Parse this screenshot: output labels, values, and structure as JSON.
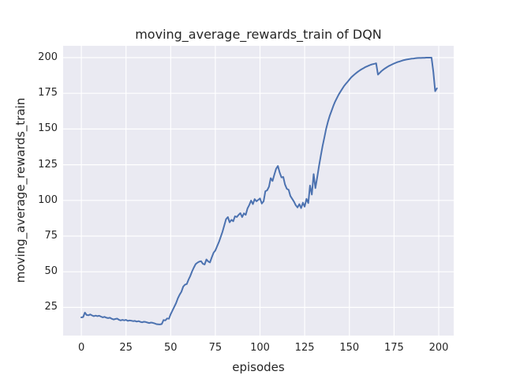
{
  "chart_data": {
    "type": "line",
    "title": "moving_average_rewards_train of DQN",
    "xlabel": "episodes",
    "ylabel": "moving_average_rewards_train",
    "xlim": [
      -10.2,
      208.4
    ],
    "ylim": [
      5.3,
      208.3
    ],
    "x_ticks": [
      0,
      25,
      50,
      75,
      100,
      125,
      150,
      175,
      200
    ],
    "y_ticks": [
      25,
      50,
      75,
      100,
      125,
      150,
      175,
      200
    ],
    "grid": true,
    "legend": false,
    "style": "seaborn-darkgrid",
    "colors": {
      "line": "#4c72b0",
      "axes_background": "#eaeaf2",
      "grid": "#ffffff",
      "text": "#262626",
      "figure_background": "#ffffff"
    },
    "series": [
      {
        "name": "moving_average_rewards_train",
        "points": [
          [
            0,
            18.0
          ],
          [
            1,
            18.3
          ],
          [
            2,
            21.4
          ],
          [
            3,
            19.7
          ],
          [
            4,
            19.5
          ],
          [
            5,
            20.1
          ],
          [
            6,
            19.4
          ],
          [
            7,
            18.9
          ],
          [
            8,
            19.3
          ],
          [
            9,
            18.9
          ],
          [
            10,
            19.2
          ],
          [
            11,
            18.6
          ],
          [
            12,
            18.1
          ],
          [
            13,
            18.4
          ],
          [
            14,
            17.8
          ],
          [
            15,
            17.5
          ],
          [
            16,
            17.8
          ],
          [
            17,
            17.1
          ],
          [
            18,
            16.6
          ],
          [
            19,
            16.9
          ],
          [
            20,
            17.2
          ],
          [
            21,
            16.4
          ],
          [
            22,
            15.9
          ],
          [
            23,
            16.3
          ],
          [
            24,
            16.0
          ],
          [
            25,
            16.3
          ],
          [
            26,
            15.6
          ],
          [
            27,
            15.9
          ],
          [
            28,
            15.7
          ],
          [
            29,
            15.4
          ],
          [
            30,
            15.6
          ],
          [
            31,
            15.1
          ],
          [
            32,
            15.4
          ],
          [
            33,
            14.9
          ],
          [
            34,
            14.6
          ],
          [
            35,
            15.0
          ],
          [
            36,
            14.8
          ],
          [
            37,
            14.4
          ],
          [
            38,
            14.1
          ],
          [
            39,
            14.4
          ],
          [
            40,
            14.2
          ],
          [
            41,
            13.8
          ],
          [
            42,
            13.3
          ],
          [
            43,
            13.2
          ],
          [
            44,
            13.1
          ],
          [
            45,
            13.4
          ],
          [
            46,
            16.2
          ],
          [
            47,
            15.9
          ],
          [
            48,
            17.3
          ],
          [
            49,
            17.1
          ],
          [
            50,
            20.3
          ],
          [
            51,
            22.9
          ],
          [
            52,
            25.4
          ],
          [
            53,
            28.0
          ],
          [
            54,
            31.4
          ],
          [
            55,
            33.9
          ],
          [
            56,
            36.0
          ],
          [
            57,
            39.6
          ],
          [
            58,
            40.9
          ],
          [
            59,
            41.4
          ],
          [
            60,
            44.6
          ],
          [
            61,
            47.1
          ],
          [
            62,
            50.4
          ],
          [
            63,
            53.1
          ],
          [
            64,
            55.4
          ],
          [
            65,
            56.4
          ],
          [
            66,
            57.1
          ],
          [
            67,
            57.4
          ],
          [
            68,
            55.6
          ],
          [
            69,
            55.1
          ],
          [
            70,
            58.6
          ],
          [
            71,
            57.2
          ],
          [
            72,
            56.6
          ],
          [
            73,
            60.1
          ],
          [
            74,
            63.4
          ],
          [
            75,
            64.9
          ],
          [
            76,
            67.9
          ],
          [
            77,
            70.9
          ],
          [
            78,
            74.4
          ],
          [
            79,
            78.1
          ],
          [
            80,
            82.4
          ],
          [
            81,
            86.9
          ],
          [
            82,
            88.3
          ],
          [
            83,
            84.6
          ],
          [
            84,
            86.4
          ],
          [
            85,
            85.4
          ],
          [
            86,
            88.9
          ],
          [
            87,
            88.4
          ],
          [
            88,
            89.9
          ],
          [
            89,
            91.1
          ],
          [
            90,
            88.3
          ],
          [
            91,
            90.9
          ],
          [
            92,
            89.9
          ],
          [
            93,
            94.4
          ],
          [
            94,
            96.9
          ],
          [
            95,
            99.9
          ],
          [
            96,
            97.4
          ],
          [
            97,
            100.9
          ],
          [
            98,
            99.4
          ],
          [
            99,
            100.4
          ],
          [
            100,
            101.4
          ],
          [
            101,
            97.8
          ],
          [
            102,
            99.4
          ],
          [
            103,
            106.4
          ],
          [
            104,
            107.1
          ],
          [
            105,
            109.6
          ],
          [
            106,
            115.6
          ],
          [
            107,
            113.6
          ],
          [
            108,
            118.1
          ],
          [
            109,
            122.1
          ],
          [
            110,
            124.1
          ],
          [
            111,
            119.6
          ],
          [
            112,
            116.1
          ],
          [
            113,
            116.4
          ],
          [
            114,
            111.1
          ],
          [
            115,
            108.1
          ],
          [
            116,
            107.4
          ],
          [
            117,
            103.1
          ],
          [
            118,
            101.1
          ],
          [
            119,
            99.1
          ],
          [
            120,
            96.6
          ],
          [
            121,
            95.1
          ],
          [
            122,
            97.4
          ],
          [
            123,
            94.6
          ],
          [
            124,
            98.4
          ],
          [
            125,
            95.6
          ],
          [
            126,
            101.1
          ],
          [
            127,
            98.1
          ],
          [
            128,
            110.4
          ],
          [
            129,
            104.1
          ],
          [
            130,
            118.4
          ],
          [
            131,
            108.6
          ],
          [
            132,
            116.1
          ],
          [
            133,
            124.1
          ],
          [
            134,
            131.1
          ],
          [
            135,
            138.1
          ],
          [
            136,
            144.1
          ],
          [
            137,
            150.1
          ],
          [
            138,
            155.1
          ],
          [
            139,
            159.1
          ],
          [
            140,
            162.6
          ],
          [
            141,
            166.1
          ],
          [
            142,
            169.1
          ],
          [
            143,
            171.6
          ],
          [
            144,
            174.1
          ],
          [
            145,
            176.1
          ],
          [
            146,
            178.1
          ],
          [
            147,
            180.1
          ],
          [
            148,
            181.6
          ],
          [
            149,
            183.1
          ],
          [
            150,
            184.6
          ],
          [
            151,
            186.1
          ],
          [
            152,
            187.3
          ],
          [
            153,
            188.4
          ],
          [
            154,
            189.4
          ],
          [
            155,
            190.4
          ],
          [
            156,
            191.2
          ],
          [
            157,
            192.0
          ],
          [
            158,
            192.7
          ],
          [
            159,
            193.4
          ],
          [
            160,
            194.0
          ],
          [
            161,
            194.5
          ],
          [
            162,
            195.0
          ],
          [
            163,
            195.4
          ],
          [
            164,
            195.7
          ],
          [
            165,
            196.0
          ],
          [
            166,
            188.1
          ],
          [
            167,
            189.4
          ],
          [
            168,
            190.6
          ],
          [
            169,
            191.6
          ],
          [
            170,
            192.5
          ],
          [
            171,
            193.3
          ],
          [
            172,
            194.1
          ],
          [
            173,
            194.7
          ],
          [
            174,
            195.3
          ],
          [
            175,
            195.9
          ],
          [
            176,
            196.4
          ],
          [
            177,
            196.9
          ],
          [
            178,
            197.3
          ],
          [
            179,
            197.7
          ],
          [
            180,
            198.1
          ],
          [
            181,
            198.4
          ],
          [
            182,
            198.7
          ],
          [
            183,
            198.9
          ],
          [
            184,
            199.1
          ],
          [
            185,
            199.3
          ],
          [
            186,
            199.4
          ],
          [
            187,
            199.6
          ],
          [
            188,
            199.7
          ],
          [
            189,
            199.8
          ],
          [
            190,
            199.8
          ],
          [
            191,
            199.9
          ],
          [
            192,
            199.9
          ],
          [
            193,
            200.0
          ],
          [
            194,
            200.0
          ],
          [
            195,
            200.0
          ],
          [
            196,
            200.0
          ],
          [
            197,
            190.0
          ],
          [
            198,
            176.5
          ],
          [
            199,
            178.5
          ]
        ]
      }
    ]
  }
}
